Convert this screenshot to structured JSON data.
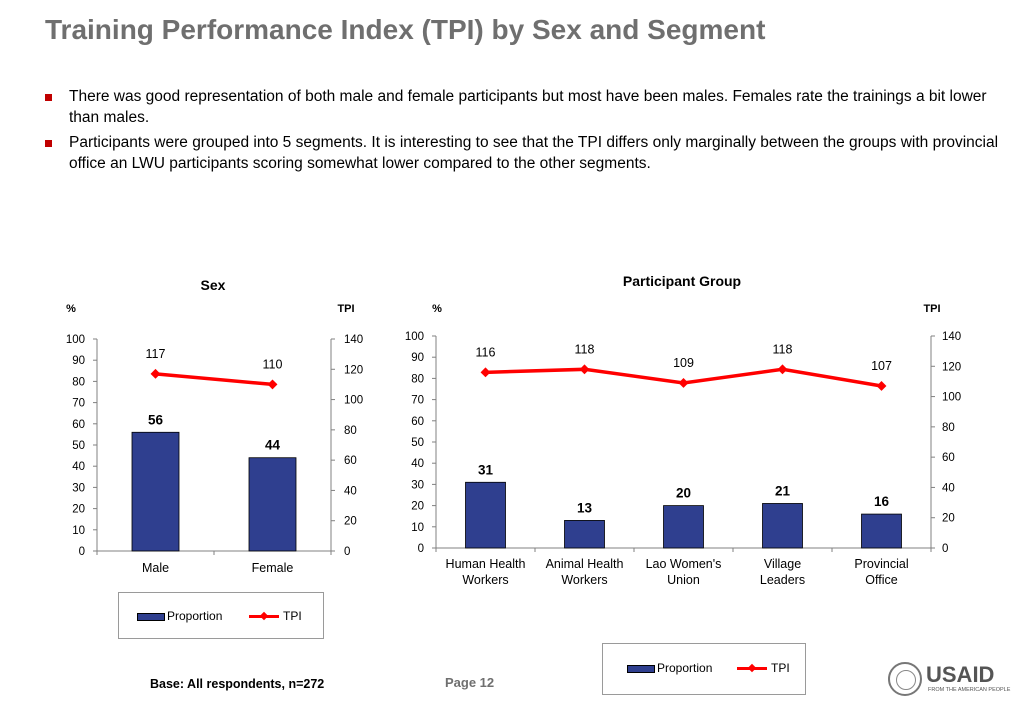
{
  "page": {
    "title": "Training Performance Index (TPI) by Sex and Segment",
    "bullets": [
      "There was good representation of both male and female participants but most have been males. Females rate the trainings a bit lower than males.",
      "Participants were grouped into 5 segments. It is interesting to see that the TPI differs only marginally between the groups with provincial office an LWU participants scoring somewhat lower compared to the other segments."
    ],
    "base_note": "Base: All respondents, n=272",
    "page_number": "Page 12",
    "logo": {
      "word": "USAID",
      "tagline": "FROM THE AMERICAN PEOPLE"
    }
  },
  "colors": {
    "bar": "#2f3f8f",
    "line": "#ff0000",
    "title": "#6f6f6f",
    "bullet": "#c00000"
  },
  "chart_data": [
    {
      "type": "bar",
      "title": "Sex",
      "categories": [
        "Male",
        "Female"
      ],
      "y_left_label": "%",
      "y_right_label": "TPI",
      "ylim": [
        0,
        100
      ],
      "y2lim": [
        0,
        140
      ],
      "yticks": [
        0,
        10,
        20,
        30,
        40,
        50,
        60,
        70,
        80,
        90,
        100
      ],
      "y2ticks": [
        0,
        20,
        40,
        60,
        80,
        100,
        120,
        140
      ],
      "series": [
        {
          "name": "Proportion",
          "type": "bar",
          "axis": "left",
          "values": [
            56,
            44
          ]
        },
        {
          "name": "TPI",
          "type": "line",
          "axis": "right",
          "values": [
            117,
            110
          ]
        }
      ],
      "legend": "bottom"
    },
    {
      "type": "bar",
      "title": "Participant Group",
      "categories": [
        [
          "Human Health",
          "Workers"
        ],
        [
          "Animal Health",
          "Workers"
        ],
        [
          "Lao Women's",
          "Union"
        ],
        [
          "Village",
          "Leaders"
        ],
        [
          "Provincial",
          "Office"
        ]
      ],
      "y_left_label": "%",
      "y_right_label": "TPI",
      "ylim": [
        0,
        100
      ],
      "y2lim": [
        0,
        140
      ],
      "yticks": [
        0,
        10,
        20,
        30,
        40,
        50,
        60,
        70,
        80,
        90,
        100
      ],
      "y2ticks": [
        0,
        20,
        40,
        60,
        80,
        100,
        120,
        140
      ],
      "series": [
        {
          "name": "Proportion",
          "type": "bar",
          "axis": "left",
          "values": [
            31,
            13,
            20,
            21,
            16
          ]
        },
        {
          "name": "TPI",
          "type": "line",
          "axis": "right",
          "values": [
            116,
            118,
            109,
            118,
            107
          ]
        }
      ],
      "legend": "bottom"
    }
  ]
}
